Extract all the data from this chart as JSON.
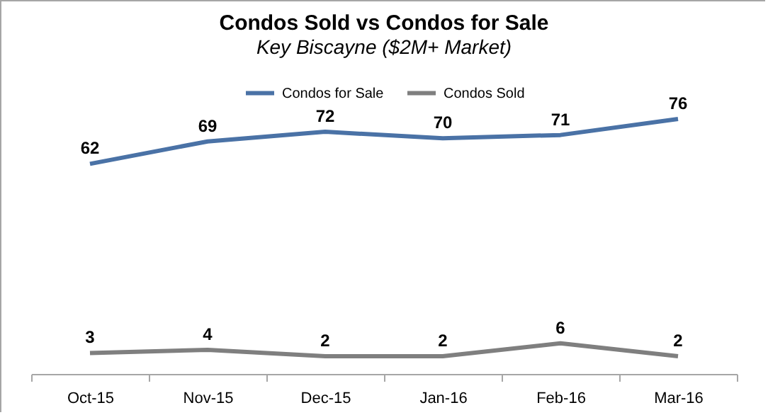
{
  "chart_data": {
    "type": "line",
    "title": "Condos Sold vs Condos for Sale",
    "subtitle": "Key Biscayne ($2M+ Market)",
    "categories": [
      "Oct-15",
      "Nov-15",
      "Dec-15",
      "Jan-16",
      "Feb-16",
      "Mar-16"
    ],
    "series": [
      {
        "name": "Condos for Sale",
        "color": "#4a72a6",
        "values": [
          62,
          69,
          72,
          70,
          71,
          76
        ]
      },
      {
        "name": "Condos Sold",
        "color": "#7f7f7f",
        "values": [
          3,
          4,
          2,
          2,
          6,
          2
        ]
      }
    ],
    "data_labels": true,
    "legend": "top",
    "grid": false,
    "marker": "none",
    "line_style": "solid"
  }
}
